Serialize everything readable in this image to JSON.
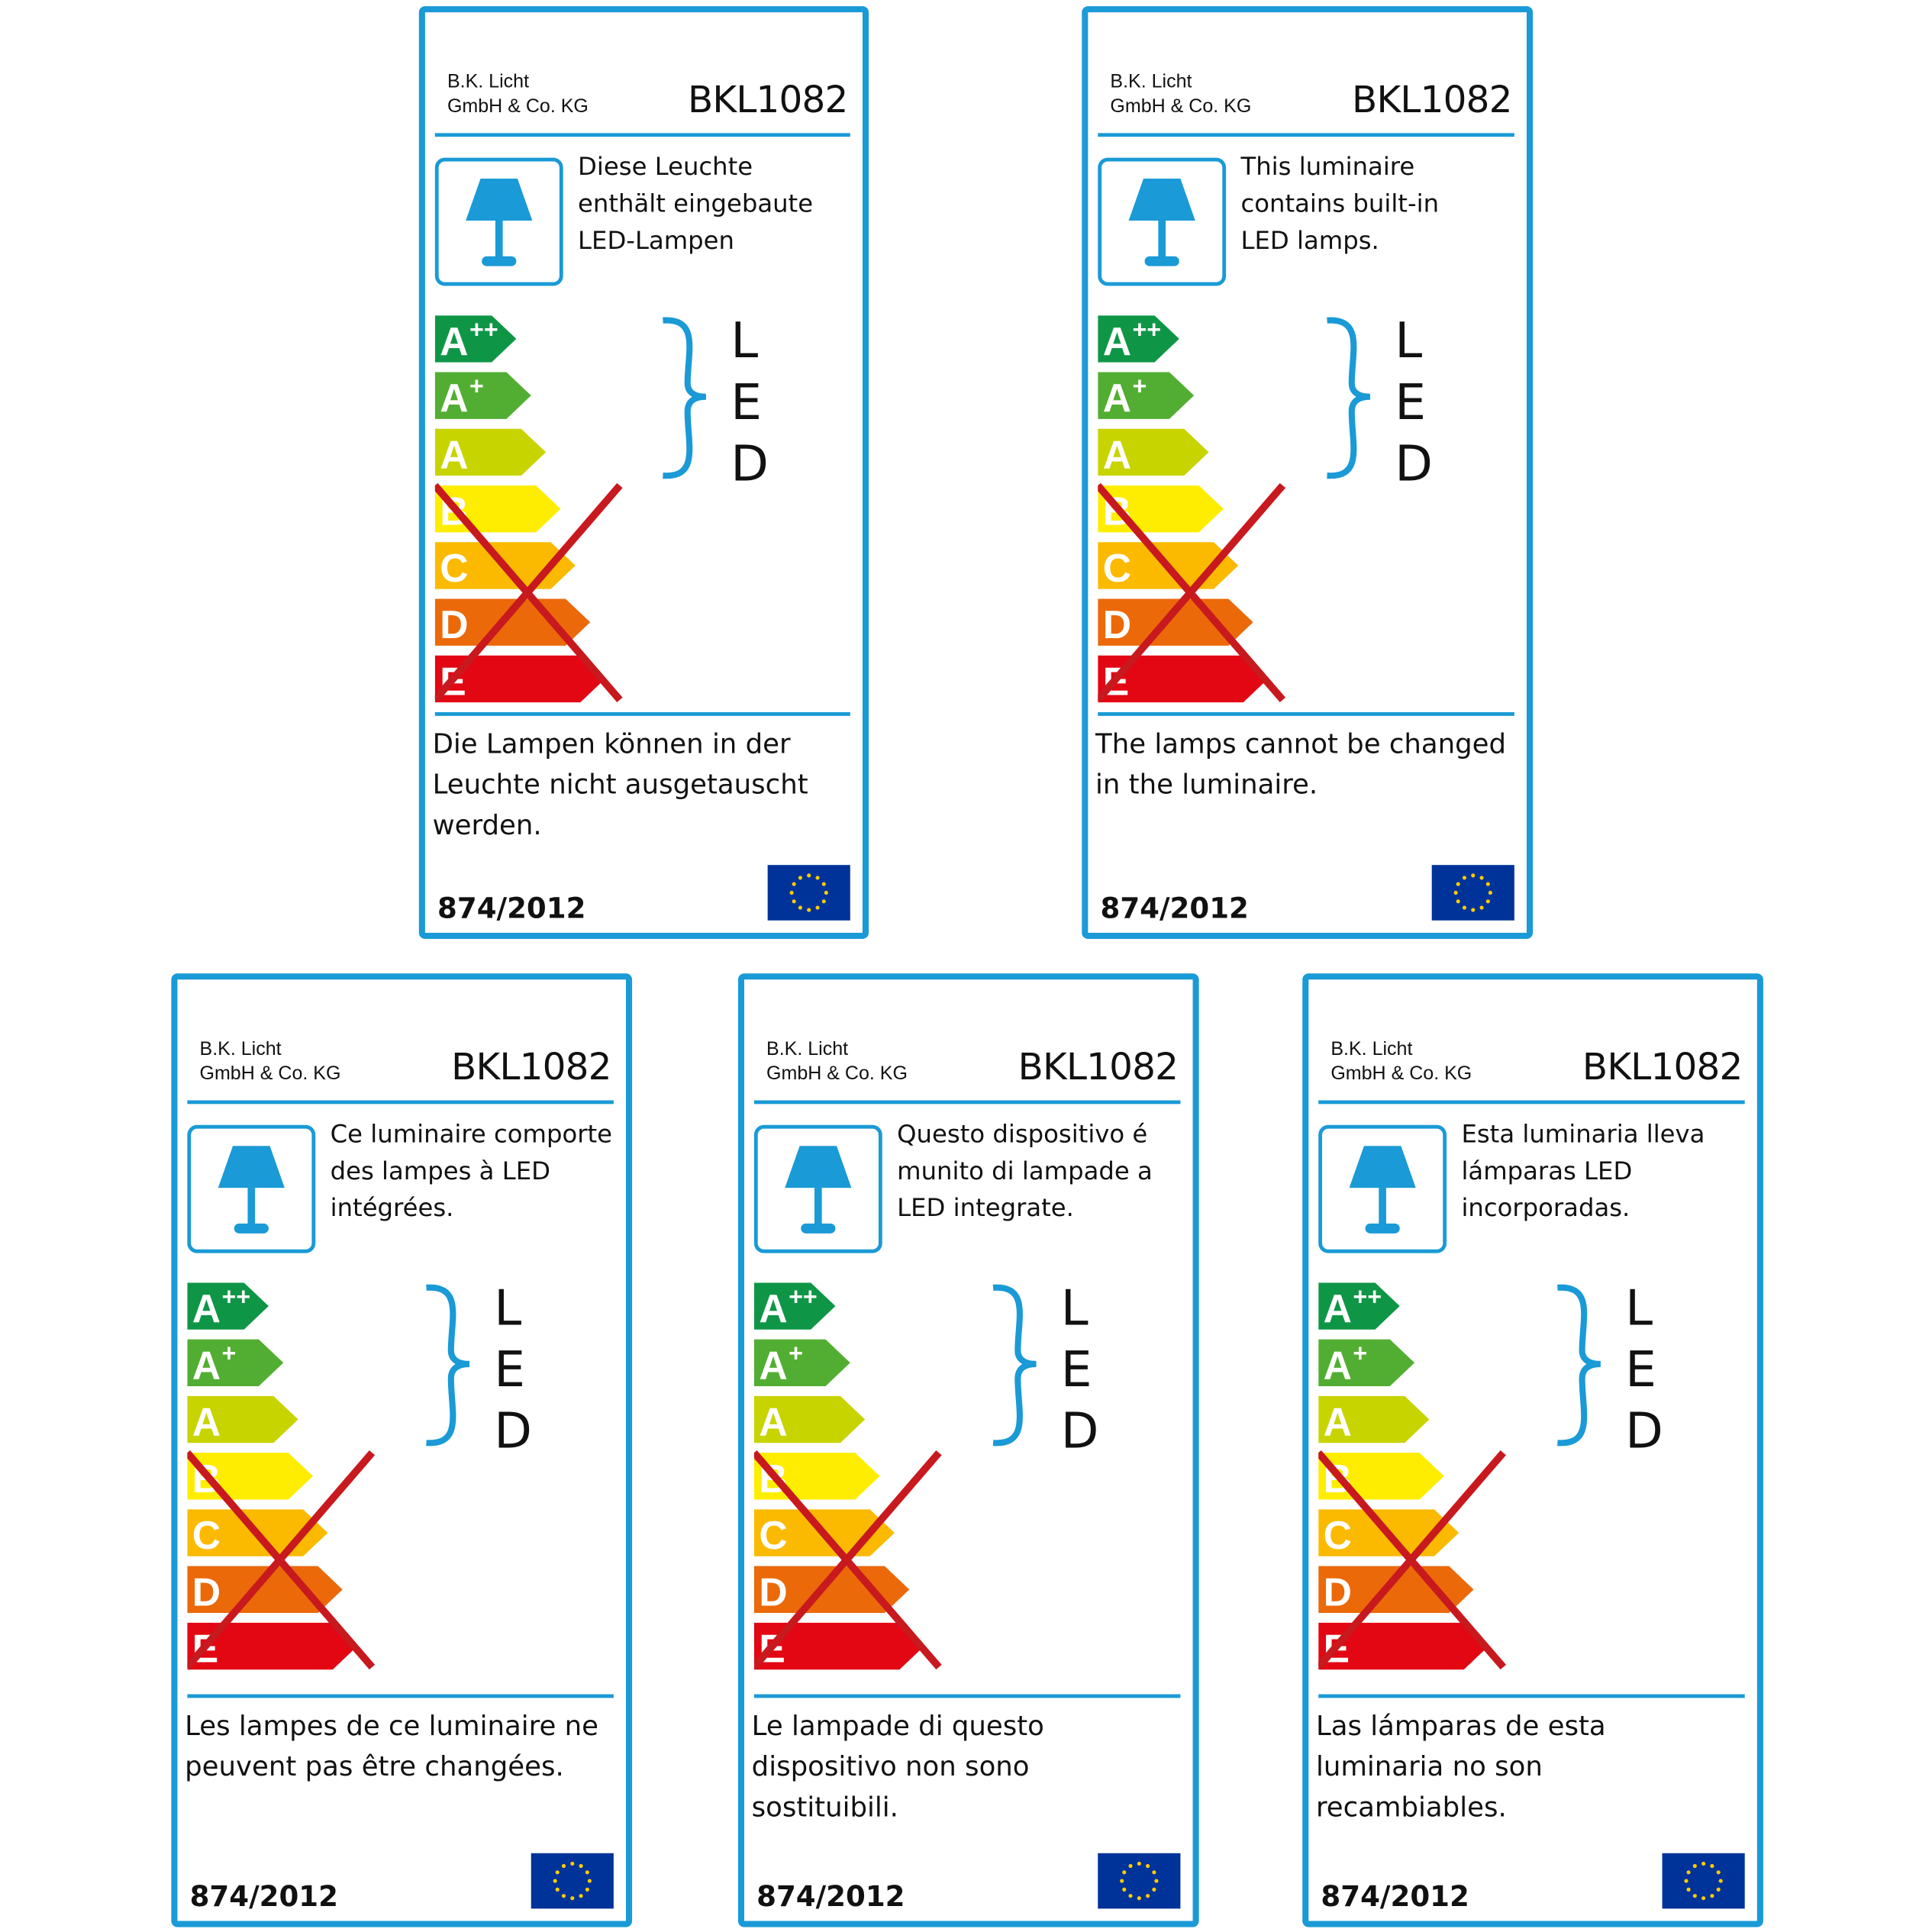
{
  "colors": {
    "border": "#1a9ad6",
    "cross": "#c8191e",
    "eu_flag": "#003399",
    "eu_stars": "#ffcc00"
  },
  "energy_classes": [
    {
      "label": "A",
      "sup": "++",
      "color": "#0e9646"
    },
    {
      "label": "A",
      "sup": "+",
      "color": "#52ae32"
    },
    {
      "label": "A",
      "sup": "",
      "color": "#c8d400"
    },
    {
      "label": "B",
      "sup": "",
      "color": "#ffed00"
    },
    {
      "label": "C",
      "sup": "",
      "color": "#fbba00"
    },
    {
      "label": "D",
      "sup": "",
      "color": "#eb6909"
    },
    {
      "label": "E",
      "sup": "",
      "color": "#e30613"
    }
  ],
  "led_letters": [
    "L",
    "E",
    "D"
  ],
  "labels": [
    {
      "company": "B.K. Licht\nGmbH & Co. KG",
      "model": "BKL1082",
      "description": "Diese Leuchte\nenthält eingebaute\nLED-Lampen",
      "bottom_text": "Die Lampen können in der\nLeuchte nicht ausgetauscht\nwerden.",
      "regulation": "874/2012"
    },
    {
      "company": "B.K. Licht\nGmbH & Co. KG",
      "model": "BKL1082",
      "description": "This luminaire\ncontains built-in\nLED lamps.",
      "bottom_text": "The lamps cannot be changed\nin the luminaire.",
      "regulation": "874/2012"
    },
    {
      "company": "B.K. Licht\nGmbH & Co. KG",
      "model": "BKL1082",
      "description": "Ce luminaire comporte\ndes lampes à LED\nintégrées.",
      "bottom_text": "Les lampes de ce luminaire ne\npeuvent pas être changées.",
      "regulation": "874/2012"
    },
    {
      "company": "B.K. Licht\nGmbH & Co. KG",
      "model": "BKL1082",
      "description": "Questo dispositivo é\nmunito di lampade a\nLED integrate.",
      "bottom_text": "Le lampade di questo\ndispositivo non sono\nsostituibili.",
      "regulation": "874/2012"
    },
    {
      "company": "B.K. Licht\nGmbH & Co. KG",
      "model": "BKL1082",
      "description": "Esta luminaria lleva\nlámparas LED\nincorporadas.",
      "bottom_text": "Las lámparas de esta\nluminaria no son\nrecambiables.",
      "regulation": "874/2012"
    }
  ]
}
